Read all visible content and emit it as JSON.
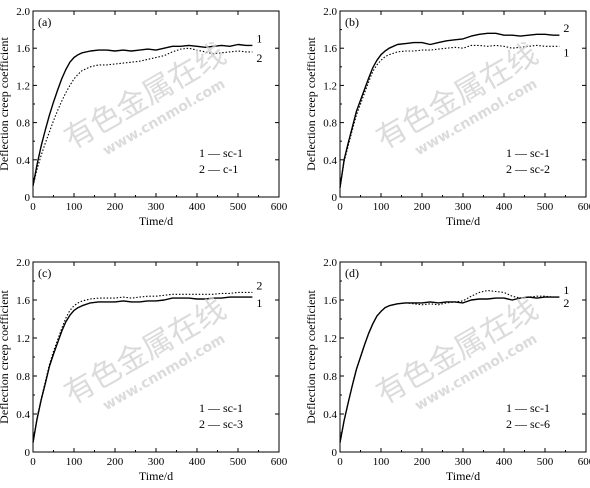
{
  "watermark": {
    "text_cn": "有色金属在线",
    "text_url": "www.cnnmol.com"
  },
  "chart_data": [
    {
      "type": "line",
      "panel_label": "(a)",
      "xlabel": "Time/d",
      "ylabel": "Deflection creep coefficient",
      "xlim": [
        0,
        600
      ],
      "ylim": [
        0,
        2.0
      ],
      "xticks": [
        "0",
        "100",
        "200",
        "300",
        "400",
        "500",
        "600"
      ],
      "yticks": [
        "0",
        "0.4",
        "0.8",
        "1.2",
        "1.6",
        "2.0"
      ],
      "legend": {
        "placement": "bottom-right",
        "entries": [
          "1 — sc-1",
          "2 — c-1"
        ]
      },
      "series": [
        {
          "name": "sc-1",
          "label": "1",
          "style": "solid",
          "x": [
            0,
            10,
            20,
            30,
            40,
            50,
            60,
            70,
            80,
            90,
            100,
            110,
            120,
            140,
            160,
            180,
            200,
            220,
            240,
            260,
            280,
            300,
            320,
            340,
            360,
            380,
            400,
            420,
            440,
            460,
            480,
            500,
            520,
            535
          ],
          "y": [
            0.12,
            0.35,
            0.55,
            0.72,
            0.88,
            1.02,
            1.15,
            1.27,
            1.37,
            1.45,
            1.5,
            1.53,
            1.55,
            1.57,
            1.58,
            1.58,
            1.57,
            1.58,
            1.57,
            1.58,
            1.59,
            1.58,
            1.6,
            1.62,
            1.62,
            1.63,
            1.62,
            1.61,
            1.62,
            1.63,
            1.62,
            1.64,
            1.63,
            1.63
          ]
        },
        {
          "name": "c-1",
          "label": "2",
          "style": "dotted",
          "x": [
            0,
            10,
            20,
            30,
            40,
            50,
            60,
            70,
            80,
            90,
            100,
            110,
            120,
            140,
            160,
            180,
            200,
            220,
            240,
            260,
            280,
            300,
            320,
            340,
            360,
            380,
            400,
            420,
            440,
            460,
            480,
            500,
            520,
            535
          ],
          "y": [
            0.12,
            0.3,
            0.45,
            0.58,
            0.7,
            0.82,
            0.93,
            1.03,
            1.12,
            1.2,
            1.27,
            1.32,
            1.36,
            1.4,
            1.42,
            1.42,
            1.43,
            1.44,
            1.45,
            1.46,
            1.48,
            1.5,
            1.52,
            1.56,
            1.59,
            1.6,
            1.58,
            1.56,
            1.54,
            1.55,
            1.56,
            1.57,
            1.56,
            1.56
          ]
        }
      ]
    },
    {
      "type": "line",
      "panel_label": "(b)",
      "xlabel": "Time/d",
      "ylabel": "Deflection creep coefficient",
      "xlim": [
        0,
        600
      ],
      "ylim": [
        0,
        2.0
      ],
      "xticks": [
        "0",
        "100",
        "200",
        "300",
        "400",
        "500",
        "600"
      ],
      "yticks": [
        "0",
        "0.4",
        "0.8",
        "1.2",
        "1.6",
        "2.0"
      ],
      "legend": {
        "placement": "bottom-right",
        "entries": [
          "1 — sc-1",
          "2 — sc-2"
        ]
      },
      "series": [
        {
          "name": "sc-1",
          "label": "1",
          "style": "dotted",
          "x": [
            0,
            10,
            20,
            30,
            40,
            50,
            60,
            70,
            80,
            90,
            100,
            110,
            120,
            140,
            160,
            180,
            200,
            220,
            240,
            260,
            280,
            300,
            320,
            340,
            360,
            380,
            400,
            420,
            440,
            460,
            480,
            500,
            520,
            535
          ],
          "y": [
            0.1,
            0.38,
            0.55,
            0.72,
            0.88,
            1.0,
            1.12,
            1.24,
            1.35,
            1.42,
            1.47,
            1.51,
            1.53,
            1.56,
            1.57,
            1.57,
            1.58,
            1.58,
            1.59,
            1.6,
            1.61,
            1.6,
            1.63,
            1.63,
            1.62,
            1.63,
            1.62,
            1.6,
            1.61,
            1.62,
            1.63,
            1.62,
            1.62,
            1.62
          ]
        },
        {
          "name": "sc-2",
          "label": "2",
          "style": "solid",
          "x": [
            0,
            10,
            20,
            30,
            40,
            50,
            60,
            70,
            80,
            90,
            100,
            110,
            120,
            140,
            160,
            180,
            200,
            220,
            240,
            260,
            280,
            300,
            320,
            340,
            360,
            380,
            400,
            420,
            440,
            460,
            480,
            500,
            520,
            535
          ],
          "y": [
            0.1,
            0.4,
            0.58,
            0.75,
            0.92,
            1.04,
            1.16,
            1.28,
            1.39,
            1.47,
            1.53,
            1.57,
            1.6,
            1.64,
            1.65,
            1.66,
            1.66,
            1.64,
            1.66,
            1.68,
            1.69,
            1.7,
            1.73,
            1.75,
            1.76,
            1.76,
            1.74,
            1.74,
            1.73,
            1.74,
            1.75,
            1.75,
            1.74,
            1.74
          ]
        }
      ]
    },
    {
      "type": "line",
      "panel_label": "(c)",
      "xlabel": "Time/d",
      "ylabel": "Deflection creep coefficient",
      "xlim": [
        0,
        600
      ],
      "ylim": [
        0,
        2.0
      ],
      "xticks": [
        "0",
        "100",
        "200",
        "300",
        "400",
        "500",
        "600"
      ],
      "yticks": [
        "0",
        "0.4",
        "0.8",
        "1.2",
        "1.6",
        "2.0"
      ],
      "legend": {
        "placement": "bottom-right",
        "entries": [
          "1 — sc-1",
          "2 — sc-3"
        ]
      },
      "series": [
        {
          "name": "sc-1",
          "label": "1",
          "style": "solid",
          "x": [
            0,
            10,
            20,
            30,
            40,
            50,
            60,
            70,
            80,
            90,
            100,
            110,
            120,
            140,
            160,
            180,
            200,
            220,
            240,
            260,
            280,
            300,
            320,
            340,
            360,
            380,
            400,
            420,
            440,
            460,
            480,
            500,
            520,
            535
          ],
          "y": [
            0.1,
            0.35,
            0.55,
            0.72,
            0.9,
            1.03,
            1.15,
            1.27,
            1.37,
            1.44,
            1.49,
            1.52,
            1.54,
            1.57,
            1.58,
            1.58,
            1.58,
            1.59,
            1.58,
            1.58,
            1.59,
            1.59,
            1.6,
            1.62,
            1.62,
            1.62,
            1.61,
            1.61,
            1.62,
            1.62,
            1.63,
            1.63,
            1.63,
            1.63
          ]
        },
        {
          "name": "sc-3",
          "label": "2",
          "style": "dotted",
          "x": [
            0,
            10,
            20,
            30,
            40,
            50,
            60,
            70,
            80,
            90,
            100,
            110,
            120,
            140,
            160,
            180,
            200,
            220,
            240,
            260,
            280,
            300,
            320,
            340,
            360,
            380,
            400,
            420,
            440,
            460,
            480,
            500,
            520,
            535
          ],
          "y": [
            0.1,
            0.36,
            0.56,
            0.74,
            0.92,
            1.06,
            1.18,
            1.3,
            1.41,
            1.49,
            1.54,
            1.57,
            1.59,
            1.61,
            1.62,
            1.62,
            1.62,
            1.63,
            1.62,
            1.63,
            1.64,
            1.64,
            1.65,
            1.66,
            1.66,
            1.66,
            1.66,
            1.66,
            1.66,
            1.67,
            1.67,
            1.68,
            1.68,
            1.68
          ]
        }
      ]
    },
    {
      "type": "line",
      "panel_label": "(d)",
      "xlabel": "Time/d",
      "ylabel": "Deflection creep coefficient",
      "xlim": [
        0,
        600
      ],
      "ylim": [
        0,
        2.0
      ],
      "xticks": [
        "0",
        "100",
        "200",
        "300",
        "400",
        "500",
        "600"
      ],
      "yticks": [
        "0",
        "0.4",
        "0.8",
        "1.2",
        "1.6",
        "2.0"
      ],
      "legend": {
        "placement": "bottom-right",
        "entries": [
          "1 — sc-1",
          "2 — sc-6"
        ]
      },
      "series": [
        {
          "name": "sc-1",
          "label": "1",
          "style": "solid",
          "x": [
            0,
            10,
            20,
            30,
            40,
            50,
            60,
            70,
            80,
            90,
            100,
            110,
            120,
            140,
            160,
            180,
            200,
            220,
            240,
            260,
            280,
            300,
            320,
            340,
            360,
            380,
            400,
            420,
            440,
            460,
            480,
            500,
            520,
            535
          ],
          "y": [
            0.1,
            0.33,
            0.52,
            0.7,
            0.87,
            1.0,
            1.13,
            1.25,
            1.35,
            1.43,
            1.48,
            1.52,
            1.54,
            1.56,
            1.57,
            1.57,
            1.57,
            1.58,
            1.57,
            1.58,
            1.58,
            1.57,
            1.6,
            1.61,
            1.61,
            1.62,
            1.62,
            1.6,
            1.62,
            1.63,
            1.62,
            1.63,
            1.63,
            1.63
          ]
        },
        {
          "name": "sc-6",
          "label": "2",
          "style": "dotted",
          "x": [
            0,
            10,
            20,
            30,
            40,
            50,
            60,
            70,
            80,
            90,
            100,
            110,
            120,
            140,
            160,
            180,
            200,
            220,
            240,
            260,
            280,
            300,
            320,
            340,
            360,
            380,
            400,
            420,
            440,
            460,
            480,
            500,
            520,
            535
          ],
          "y": [
            0.1,
            0.33,
            0.52,
            0.7,
            0.87,
            1.0,
            1.13,
            1.25,
            1.35,
            1.43,
            1.48,
            1.52,
            1.54,
            1.56,
            1.57,
            1.56,
            1.55,
            1.56,
            1.55,
            1.57,
            1.58,
            1.59,
            1.64,
            1.68,
            1.7,
            1.69,
            1.68,
            1.64,
            1.62,
            1.63,
            1.64,
            1.64,
            1.63,
            1.63
          ]
        }
      ]
    }
  ]
}
